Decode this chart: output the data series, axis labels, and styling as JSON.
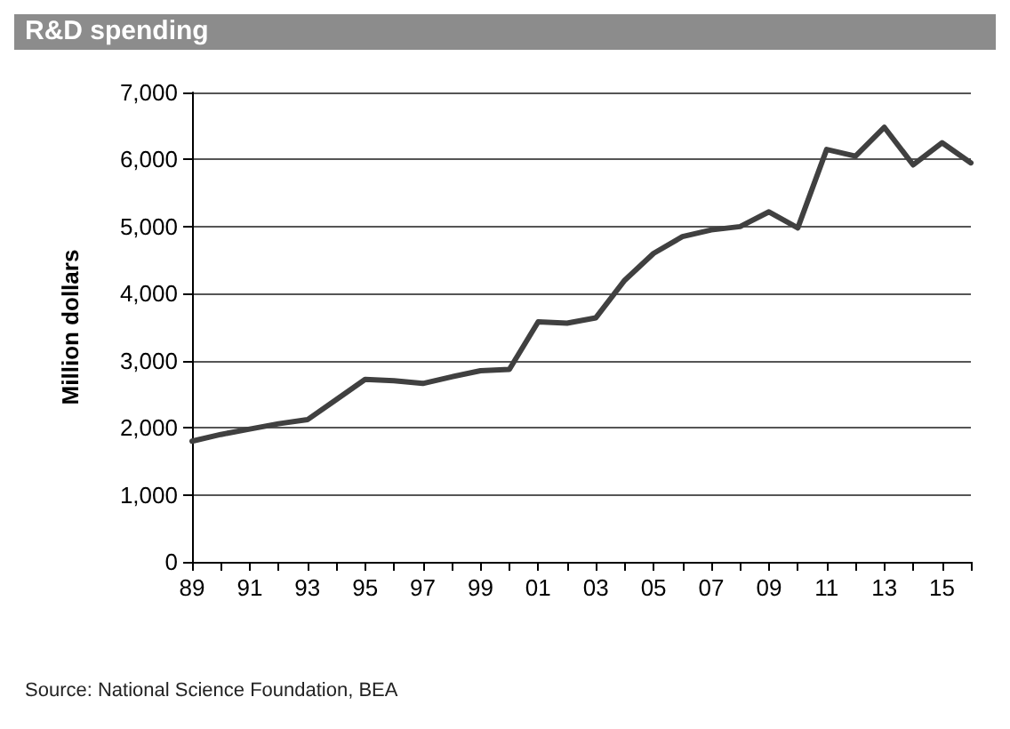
{
  "chart_data": {
    "type": "line",
    "title": "R&D spending",
    "ylabel": "Million dollars",
    "categories": [
      "89",
      null,
      "91",
      null,
      "93",
      null,
      "95",
      null,
      "97",
      null,
      "99",
      null,
      "01",
      null,
      "03",
      null,
      "05",
      null,
      "07",
      null,
      "09",
      null,
      "11",
      null,
      "13",
      null,
      "15",
      null
    ],
    "series": [
      {
        "color": "#404040",
        "values": [
          1800,
          1900,
          1980,
          2060,
          2120,
          2420,
          2720,
          2700,
          2660,
          2760,
          2850,
          2870,
          3580,
          3560,
          3640,
          4200,
          4600,
          4850,
          4950,
          5000,
          5220,
          4980,
          6150,
          6050,
          6480,
          5920,
          6250,
          5950
        ]
      }
    ],
    "ylim": [
      0,
      7000
    ],
    "yticks": [
      0,
      {
        "value": 1000,
        "label": "1,000"
      },
      {
        "value": 2000,
        "label": "2,000"
      },
      {
        "value": 3000,
        "label": "3,000"
      },
      {
        "value": 4000,
        "label": "4,000"
      },
      {
        "value": 5000,
        "label": "5,000"
      },
      {
        "value": 6000,
        "label": "6,000"
      },
      {
        "value": 7000,
        "label": "7,000"
      }
    ],
    "grid": "y",
    "marker": "none",
    "line_style": "solid",
    "annotations": [
      "Source: National Science Foundation, BEA"
    ]
  }
}
